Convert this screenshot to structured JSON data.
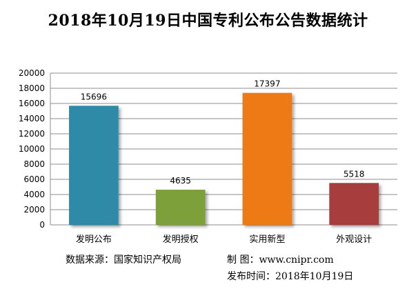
{
  "chart_data": {
    "type": "bar",
    "title": "2018年10月19日中国专利公布公告数据统计",
    "categories": [
      "发明公布",
      "发明授权",
      "实用新型",
      "外观设计"
    ],
    "values": [
      15696,
      4635,
      17397,
      5518
    ],
    "colors": [
      "#2f8aa6",
      "#7ea03a",
      "#ee7a16",
      "#a83c3c"
    ],
    "ylim": [
      0,
      20000
    ],
    "yticks": [
      0,
      2000,
      4000,
      6000,
      8000,
      10000,
      12000,
      14000,
      16000,
      18000,
      20000
    ],
    "grid": true,
    "legend": "none"
  },
  "footer": {
    "source": "数据来源：国家知识产权局",
    "maker": "制  图：www.cnipr.com",
    "pubtime": "发布时间：2018年10月19日"
  }
}
